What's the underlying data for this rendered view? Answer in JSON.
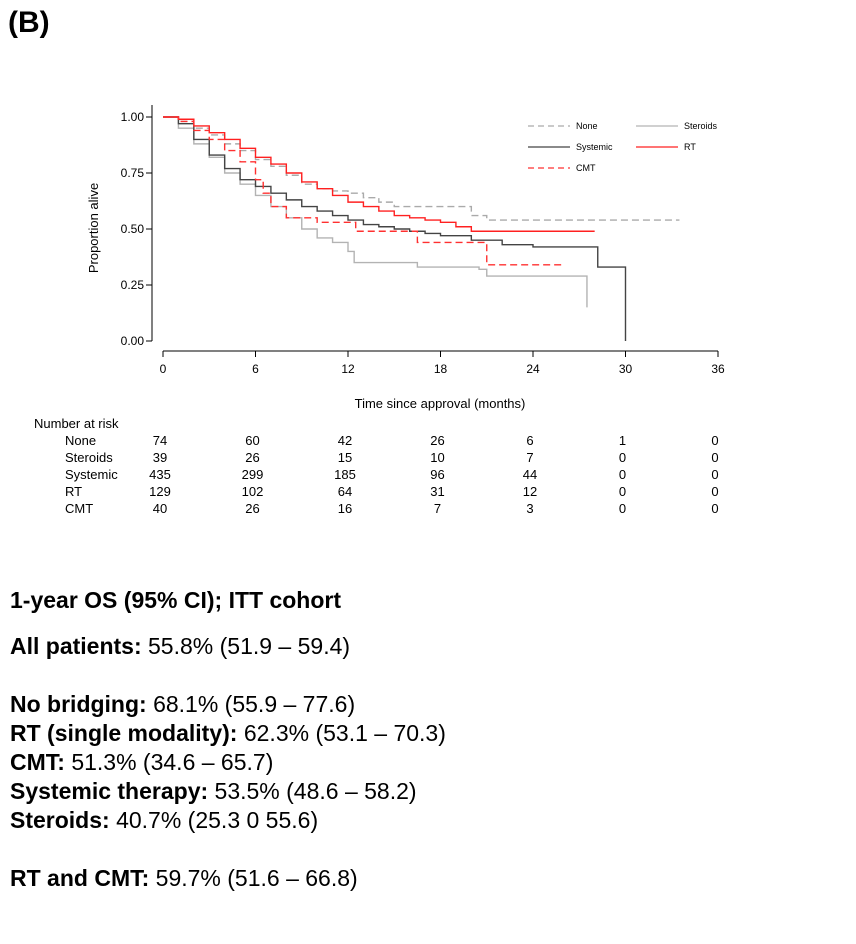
{
  "panel_label": "(B)",
  "chart_data": {
    "type": "line",
    "subtype": "kaplan-meier",
    "xlabel": "Time since approval (months)",
    "ylabel": "Proportion alive",
    "xlim": [
      0,
      36
    ],
    "ylim": [
      0,
      1
    ],
    "xticks": [
      "0",
      "6",
      "12",
      "18",
      "24",
      "30",
      "36"
    ],
    "yticks": [
      "0.00",
      "0.25",
      "0.50",
      "0.75",
      "1.00"
    ],
    "grid": false,
    "legend_position": "top-right",
    "series": [
      {
        "name": "None",
        "color": "#aaaaaa",
        "dash": "dashed",
        "points": [
          [
            0,
            1.0
          ],
          [
            1,
            0.98
          ],
          [
            2,
            0.95
          ],
          [
            3,
            0.92
          ],
          [
            4,
            0.88
          ],
          [
            5,
            0.85
          ],
          [
            6,
            0.81
          ],
          [
            7,
            0.78
          ],
          [
            8,
            0.74
          ],
          [
            9,
            0.7
          ],
          [
            10,
            0.68
          ],
          [
            11,
            0.67
          ],
          [
            12,
            0.66
          ],
          [
            13,
            0.64
          ],
          [
            14,
            0.62
          ],
          [
            15,
            0.6
          ],
          [
            18,
            0.6
          ],
          [
            20,
            0.56
          ],
          [
            21,
            0.54
          ],
          [
            30,
            0.54
          ],
          [
            33.5,
            0.54
          ]
        ]
      },
      {
        "name": "Steroids",
        "color": "#b3b3b3",
        "dash": "solid",
        "points": [
          [
            0,
            1.0
          ],
          [
            1,
            0.95
          ],
          [
            2,
            0.88
          ],
          [
            3,
            0.82
          ],
          [
            4,
            0.75
          ],
          [
            5,
            0.7
          ],
          [
            6,
            0.65
          ],
          [
            7,
            0.6
          ],
          [
            8,
            0.55
          ],
          [
            9,
            0.5
          ],
          [
            10,
            0.46
          ],
          [
            11,
            0.44
          ],
          [
            12,
            0.4
          ],
          [
            12.4,
            0.35
          ],
          [
            16,
            0.35
          ],
          [
            16.5,
            0.33
          ],
          [
            20.5,
            0.32
          ],
          [
            21,
            0.29
          ],
          [
            27.5,
            0.29
          ],
          [
            27.5,
            0.15
          ]
        ]
      },
      {
        "name": "Systemic",
        "color": "#444444",
        "dash": "solid",
        "points": [
          [
            0,
            1.0
          ],
          [
            1,
            0.97
          ],
          [
            2,
            0.9
          ],
          [
            3,
            0.83
          ],
          [
            4,
            0.77
          ],
          [
            5,
            0.72
          ],
          [
            6,
            0.69
          ],
          [
            7,
            0.66
          ],
          [
            8,
            0.63
          ],
          [
            9,
            0.6
          ],
          [
            10,
            0.58
          ],
          [
            11,
            0.56
          ],
          [
            12,
            0.54
          ],
          [
            13,
            0.52
          ],
          [
            14,
            0.51
          ],
          [
            15,
            0.5
          ],
          [
            16,
            0.49
          ],
          [
            17,
            0.48
          ],
          [
            18,
            0.47
          ],
          [
            20,
            0.45
          ],
          [
            22,
            0.43
          ],
          [
            24,
            0.42
          ],
          [
            27,
            0.42
          ],
          [
            28.2,
            0.42
          ],
          [
            28.2,
            0.33
          ],
          [
            30,
            0.33
          ],
          [
            30,
            0.0
          ]
        ]
      },
      {
        "name": "RT",
        "color": "#ff2020",
        "dash": "solid",
        "points": [
          [
            0,
            1.0
          ],
          [
            1,
            0.99
          ],
          [
            2,
            0.96
          ],
          [
            3,
            0.93
          ],
          [
            4,
            0.9
          ],
          [
            5,
            0.86
          ],
          [
            6,
            0.82
          ],
          [
            7,
            0.79
          ],
          [
            8,
            0.75
          ],
          [
            9,
            0.71
          ],
          [
            10,
            0.68
          ],
          [
            11,
            0.65
          ],
          [
            12,
            0.62
          ],
          [
            13,
            0.6
          ],
          [
            14,
            0.58
          ],
          [
            15,
            0.56
          ],
          [
            16,
            0.55
          ],
          [
            17,
            0.54
          ],
          [
            18,
            0.53
          ],
          [
            19,
            0.51
          ],
          [
            20,
            0.49
          ],
          [
            28,
            0.49
          ]
        ]
      },
      {
        "name": "CMT",
        "color": "#ff3030",
        "dash": "dashed",
        "points": [
          [
            0,
            1.0
          ],
          [
            1,
            0.98
          ],
          [
            2,
            0.94
          ],
          [
            3,
            0.9
          ],
          [
            4,
            0.85
          ],
          [
            5,
            0.8
          ],
          [
            6,
            0.72
          ],
          [
            6.5,
            0.66
          ],
          [
            7,
            0.6
          ],
          [
            8,
            0.55
          ],
          [
            9,
            0.55
          ],
          [
            10,
            0.53
          ],
          [
            12,
            0.53
          ],
          [
            12.5,
            0.49
          ],
          [
            16,
            0.49
          ],
          [
            16.5,
            0.44
          ],
          [
            21,
            0.44
          ],
          [
            21,
            0.34
          ],
          [
            26,
            0.34
          ]
        ]
      }
    ],
    "risk_table": {
      "title": "Number at risk",
      "times": [
        0,
        6,
        12,
        18,
        24,
        30,
        36
      ],
      "rows": [
        {
          "label": "None",
          "values": [
            "74",
            "60",
            "42",
            "26",
            "6",
            "1",
            "0"
          ]
        },
        {
          "label": "Steroids",
          "values": [
            "39",
            "26",
            "15",
            "10",
            "7",
            "0",
            "0"
          ]
        },
        {
          "label": "Systemic",
          "values": [
            "435",
            "299",
            "185",
            "96",
            "44",
            "0",
            "0"
          ]
        },
        {
          "label": "RT",
          "values": [
            "129",
            "102",
            "64",
            "31",
            "12",
            "0",
            "0"
          ]
        },
        {
          "label": "CMT",
          "values": [
            "40",
            "26",
            "16",
            "7",
            "3",
            "0",
            "0"
          ]
        }
      ]
    }
  },
  "results": {
    "heading": "1-year OS (95% CI); ITT cohort",
    "all": {
      "label": "All patients:",
      "value": " 55.8% (51.9 – 59.4)"
    },
    "groups": [
      {
        "label": "No bridging:",
        "value": " 68.1% (55.9 – 77.6)"
      },
      {
        "label": "RT (single modality):",
        "value": " 62.3% (53.1 – 70.3)"
      },
      {
        "label": "CMT:",
        "value": " 51.3% (34.6 – 65.7)"
      },
      {
        "label": "Systemic therapy:",
        "value": " 53.5% (48.6 – 58.2)"
      },
      {
        "label": "Steroids:",
        "value": " 40.7% (25.3 0 55.6)"
      }
    ],
    "combined": {
      "label": "RT and CMT:",
      "value": " 59.7% (51.6 – 66.8)"
    }
  }
}
